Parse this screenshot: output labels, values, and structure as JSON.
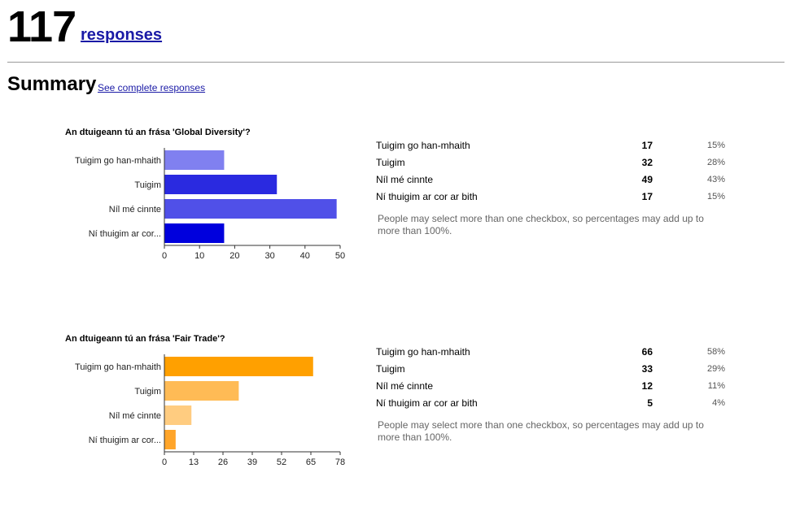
{
  "header": {
    "count": "117",
    "count_label": "responses"
  },
  "summary": {
    "title": "Summary",
    "link": "See complete responses"
  },
  "questions": [
    {
      "title": "An dtuigeann tú an frása 'Global Diversity'?",
      "note": "People may select more than one checkbox, so percentages may add up to more than 100%.",
      "rows": [
        {
          "label": "Tuigim go han-mhaith",
          "count": "17",
          "pct": "15%"
        },
        {
          "label": "Tuigim",
          "count": "32",
          "pct": "28%"
        },
        {
          "label": "Níl mé cinnte",
          "count": "49",
          "pct": "43%"
        },
        {
          "label": "Ní thuigim ar cor ar bith",
          "count": "17",
          "pct": "15%"
        }
      ]
    },
    {
      "title": "An dtuigeann tú an frása 'Fair Trade'?",
      "note": "People may select more than one checkbox, so percentages may add up to more than 100%.",
      "rows": [
        {
          "label": "Tuigim go han-mhaith",
          "count": "66",
          "pct": "58%"
        },
        {
          "label": "Tuigim",
          "count": "33",
          "pct": "29%"
        },
        {
          "label": "Níl mé cinnte",
          "count": "12",
          "pct": "11%"
        },
        {
          "label": "Ní thuigim ar cor ar bith",
          "count": "5",
          "pct": "4%"
        }
      ]
    }
  ],
  "chart_data": [
    {
      "type": "bar",
      "orientation": "horizontal",
      "categories": [
        "Tuigim go han-mhaith",
        "Tuigim",
        "Níl mé cinnte",
        "Ní thuigim ar cor..."
      ],
      "values": [
        17,
        32,
        49,
        17
      ],
      "xlim": [
        0,
        50
      ],
      "xticks": [
        "0",
        "10",
        "20",
        "30",
        "40",
        "50"
      ],
      "colors": [
        "#8080f0",
        "#2a2ae0",
        "#5050e8",
        "#0000dd"
      ]
    },
    {
      "type": "bar",
      "orientation": "horizontal",
      "categories": [
        "Tuigim go han-mhaith",
        "Tuigim",
        "Níl mé cinnte",
        "Ní thuigim ar cor..."
      ],
      "values": [
        66,
        33,
        12,
        5
      ],
      "xlim": [
        0,
        78
      ],
      "xticks": [
        "0",
        "13",
        "26",
        "39",
        "52",
        "65",
        "78"
      ],
      "colors": [
        "#ffa000",
        "#ffbb55",
        "#ffcc80",
        "#ffa52a"
      ]
    }
  ]
}
